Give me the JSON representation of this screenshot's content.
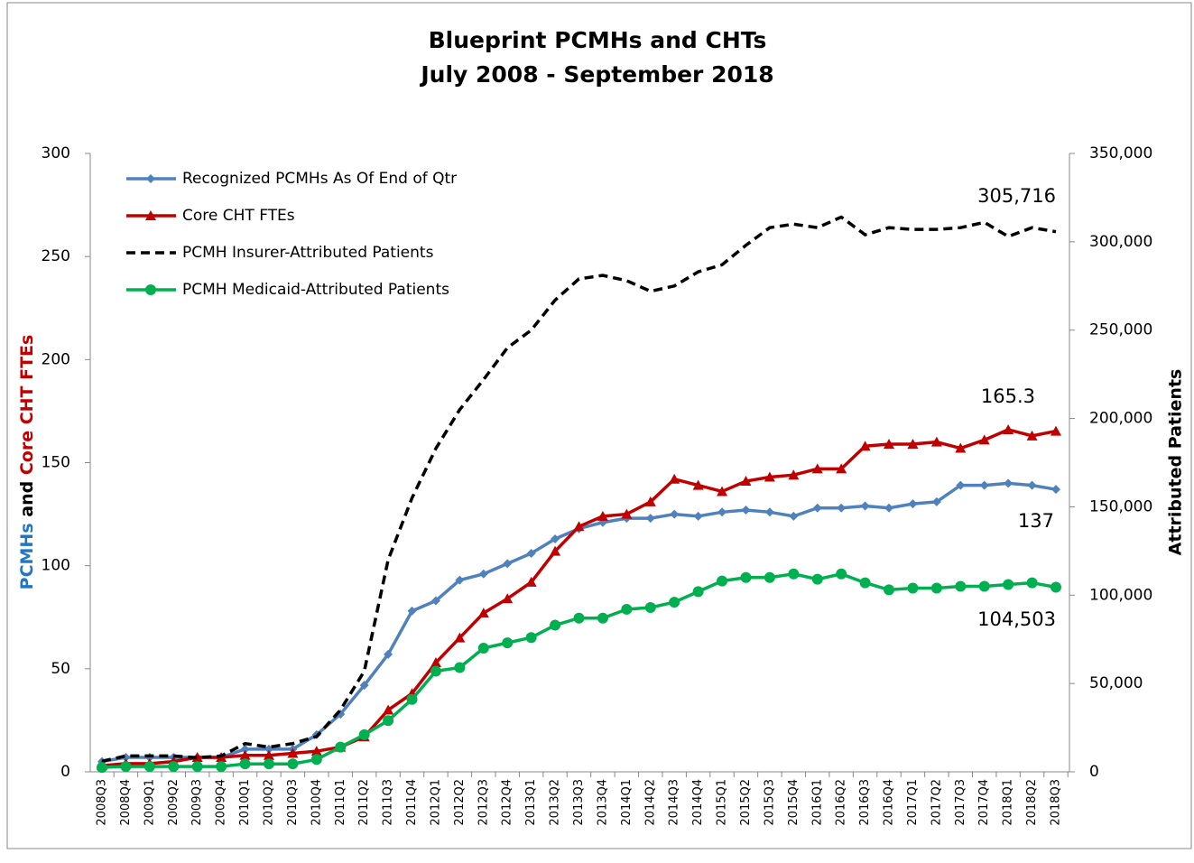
{
  "chart_data": {
    "type": "line",
    "title": [
      "Blueprint PCMHs and CHTs",
      "July 2008 - September 2018"
    ],
    "y_label": [
      {
        "text": "PCMHs",
        "color": "#1f77c4"
      },
      {
        "text": " and ",
        "color": "#000000"
      },
      {
        "text": "Core CHT FTEs",
        "color": "#c00000"
      }
    ],
    "y2_label": "Attributed Patients",
    "categories": [
      "2008Q3",
      "2008Q4",
      "2009Q1",
      "2009Q2",
      "2009Q3",
      "2009Q4",
      "2010Q1",
      "2010Q2",
      "2010Q3",
      "2010Q4",
      "2011Q1",
      "2011Q2",
      "2011Q3",
      "2011Q4",
      "2012Q1",
      "2012Q2",
      "2012Q3",
      "2012Q4",
      "2013Q1",
      "2013Q2",
      "2013Q3",
      "2013Q4",
      "2014Q1",
      "2014Q2",
      "2014Q3",
      "2014Q4",
      "2015Q1",
      "2015Q2",
      "2015Q3",
      "2015Q4",
      "2016Q1",
      "2016Q2",
      "2016Q3",
      "2016Q4",
      "2017Q1",
      "2017Q2",
      "2017Q3",
      "2017Q4",
      "2018Q1",
      "2018Q2",
      "2018Q3"
    ],
    "ylim": [
      0,
      300
    ],
    "yticks": [
      0,
      50,
      100,
      150,
      200,
      250,
      300
    ],
    "y2lim": [
      0,
      350000
    ],
    "y2ticks": [
      0,
      {
        "value": 50000,
        "label": "50,000"
      },
      {
        "value": 100000,
        "label": "100,000"
      },
      {
        "value": 150000,
        "label": "150,000"
      },
      {
        "value": 200000,
        "label": "200,000"
      },
      {
        "value": 250000,
        "label": "250,000"
      },
      {
        "value": 300000,
        "label": "300,000"
      },
      {
        "value": 350000,
        "label": "350,000"
      }
    ],
    "grid": false,
    "legend": "top-left",
    "series": [
      {
        "name": "Recognized PCMHs As Of End of Qtr",
        "color": "#4f81bd",
        "marker": "diamond",
        "dashed": false,
        "values": [
          5,
          7,
          7,
          7,
          7,
          7,
          11,
          11,
          11,
          18,
          28,
          42,
          57,
          78,
          83,
          93,
          96,
          101,
          106,
          113,
          118,
          121,
          123,
          123,
          125,
          124,
          126,
          127,
          126,
          124,
          128,
          128,
          129,
          128,
          130,
          131,
          139,
          139,
          140,
          139,
          137
        ]
      },
      {
        "name": "Core CHT FTEs",
        "color": "#c00000",
        "marker": "triangle",
        "dashed": false,
        "values": [
          3,
          4,
          4,
          5,
          7,
          7,
          8,
          8,
          9,
          10,
          12,
          17,
          30,
          38,
          53,
          65,
          77,
          84,
          92,
          107,
          119,
          124,
          125,
          131,
          142,
          139,
          136,
          141,
          143,
          144,
          147,
          147,
          158,
          159,
          159,
          160,
          157,
          161,
          166,
          163,
          165.3
        ]
      },
      {
        "name": "PCMH Insurer-Attributed Patients",
        "color": "#000000",
        "marker": "none",
        "dashed": true,
        "axis": "y2",
        "values": [
          6000,
          9000,
          9000,
          9000,
          8000,
          9000,
          16000,
          14000,
          16000,
          20000,
          35000,
          57000,
          120000,
          155000,
          183000,
          205000,
          222000,
          240000,
          250000,
          267000,
          279000,
          281000,
          278000,
          272000,
          275000,
          283000,
          287000,
          298000,
          308000,
          310000,
          308000,
          314000,
          304000,
          308000,
          307000,
          307000,
          308000,
          311000,
          303000,
          308000,
          305716
        ],
        "value_labels": [
          null,
          null,
          null,
          null,
          null,
          null,
          null,
          null,
          null,
          null,
          null,
          null,
          null,
          null,
          null,
          null,
          null,
          null,
          null,
          null,
          null,
          null,
          null,
          null,
          null,
          null,
          null,
          null,
          null,
          null,
          null,
          null,
          null,
          null,
          null,
          null,
          null,
          null,
          null,
          null,
          "305,716"
        ]
      },
      {
        "name": "PCMH Medicaid-Attributed Patients",
        "color": "#00b050",
        "marker": "circle",
        "dashed": false,
        "axis": "y2",
        "values": [
          2500,
          3000,
          3000,
          3000,
          3000,
          3000,
          4500,
          4500,
          4500,
          7000,
          14000,
          21000,
          29000,
          41000,
          57000,
          59000,
          70000,
          73000,
          76000,
          83000,
          87000,
          87000,
          92000,
          93000,
          96000,
          102000,
          108000,
          110000,
          110000,
          112000,
          109000,
          112000,
          107000,
          103000,
          104000,
          104000,
          105000,
          105000,
          106000,
          107000,
          104503
        ],
        "value_labels": [
          null,
          null,
          null,
          null,
          null,
          null,
          null,
          null,
          null,
          null,
          null,
          null,
          null,
          null,
          null,
          null,
          null,
          null,
          null,
          null,
          null,
          null,
          null,
          null,
          null,
          null,
          null,
          null,
          null,
          null,
          null,
          null,
          null,
          null,
          null,
          null,
          null,
          null,
          null,
          null,
          "104,503"
        ]
      }
    ]
  }
}
